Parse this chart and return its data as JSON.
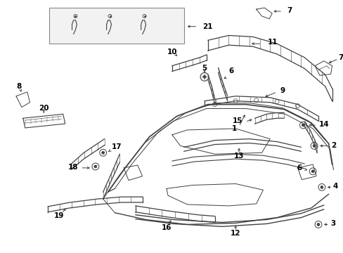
{
  "bg": "#ffffff",
  "lc": "#404040",
  "lw": 0.9,
  "fig_w": 4.89,
  "fig_h": 3.6,
  "dpi": 100
}
